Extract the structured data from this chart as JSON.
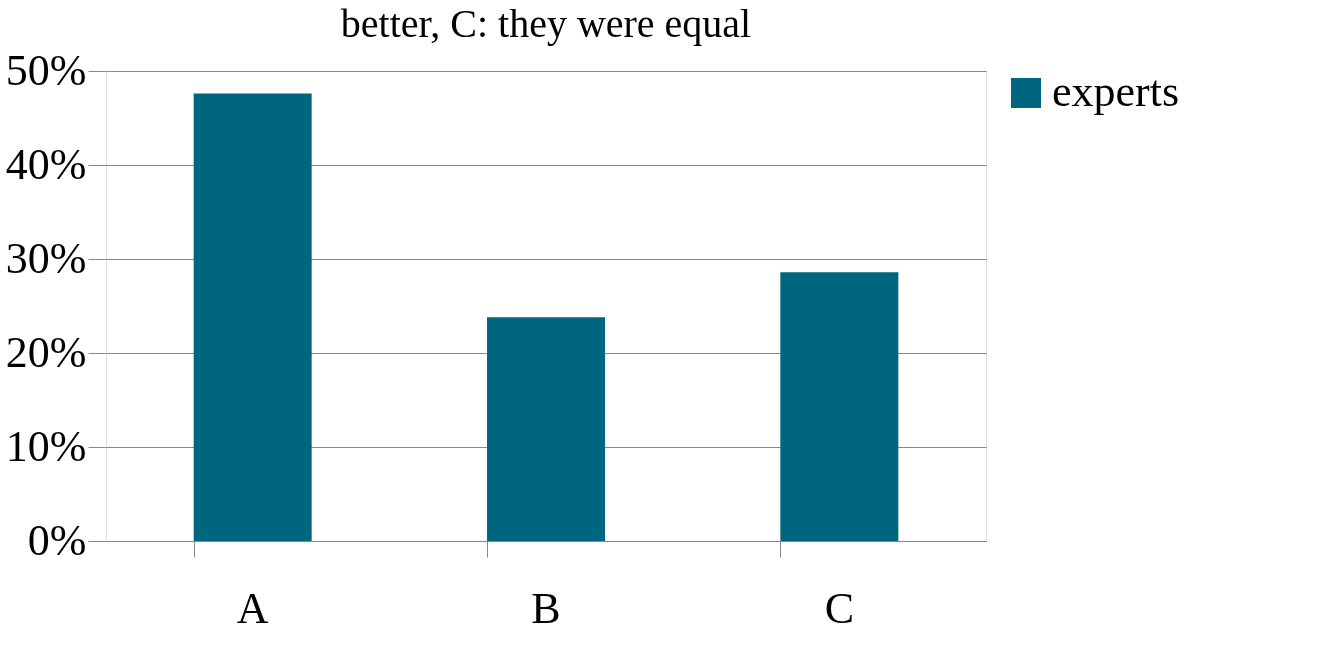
{
  "chart_data": {
    "type": "bar",
    "title": "better, C: they were equal",
    "categories": [
      "A",
      "B",
      "C"
    ],
    "series": [
      {
        "name": "experts",
        "color": "#006680",
        "values": [
          47.6,
          23.8,
          28.6
        ]
      }
    ],
    "ylim": [
      0,
      50
    ],
    "yticks": [
      {
        "value": 0,
        "label": "0%"
      },
      {
        "value": 10,
        "label": "10%"
      },
      {
        "value": 20,
        "label": "20%"
      },
      {
        "value": 30,
        "label": "30%"
      },
      {
        "value": 40,
        "label": "40%"
      },
      {
        "value": 50,
        "label": "50%"
      }
    ],
    "grid": "y",
    "legend": "right"
  }
}
